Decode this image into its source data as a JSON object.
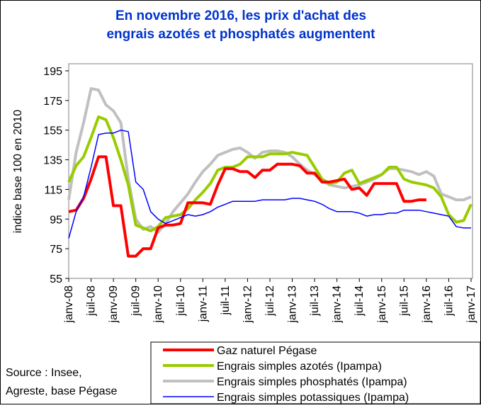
{
  "chart_data": {
    "type": "line",
    "title": "En novembre 2016, les prix d'achat des engrais azotés et phosphatés augmentent",
    "y_label": "indice base 100 en 2010",
    "source": [
      "Source : Insee,",
      "Agreste, base Pégase"
    ],
    "categories": [
      "janv-08",
      null,
      null,
      "juil-08",
      null,
      null,
      "janv-09",
      null,
      null,
      "juil-09",
      null,
      null,
      "janv-10",
      null,
      null,
      "juil-10",
      null,
      null,
      "janv-11",
      null,
      null,
      "juil-11",
      null,
      null,
      "janv-12",
      null,
      null,
      "juil-12",
      null,
      null,
      "janv-13",
      null,
      null,
      "juil-13",
      null,
      null,
      "janv-14",
      null,
      null,
      "juil-14",
      null,
      null,
      "janv-15",
      null,
      null,
      "juil-15",
      null,
      null,
      "janv-16",
      null,
      null,
      "juil-16",
      null,
      null,
      "janv-17"
    ],
    "series": [
      {
        "name": "Gaz naturel Pégase",
        "color": "#ff0000",
        "width": 4,
        "values": [
          100,
          101,
          109,
          122,
          137,
          137,
          104,
          104,
          70,
          70,
          75,
          75,
          89,
          91,
          91,
          92,
          106,
          106,
          106,
          105,
          118,
          129,
          129,
          127,
          127,
          123,
          128,
          128,
          132,
          132,
          132,
          131,
          126,
          126,
          120,
          120,
          121,
          122,
          115,
          116,
          111,
          119,
          119,
          119,
          119,
          107,
          107,
          108,
          108,
          null,
          null,
          null,
          null,
          null,
          null
        ]
      },
      {
        "name": "Engrais simples azotés (Ipampa)",
        "color": "#99cc00",
        "width": 4,
        "values": [
          120,
          131,
          137,
          150,
          164,
          162,
          150,
          135,
          118,
          91,
          89,
          87,
          90,
          96,
          97,
          98,
          102,
          108,
          113,
          119,
          128,
          130,
          130,
          132,
          137,
          137,
          137,
          139,
          139,
          139,
          140,
          139,
          138,
          130,
          122,
          119,
          120,
          126,
          128,
          119,
          121,
          123,
          125,
          130,
          130,
          122,
          120,
          119,
          118,
          116,
          110,
          98,
          93,
          94,
          105
        ]
      },
      {
        "name": "Engrais simples phosphatés (Ipampa)",
        "color": "#c0c0c0",
        "width": 4,
        "values": [
          108,
          140,
          160,
          183,
          182,
          172,
          168,
          160,
          122,
          95,
          88,
          90,
          86,
          92,
          100,
          106,
          112,
          120,
          127,
          132,
          138,
          140,
          142,
          143,
          140,
          136,
          140,
          141,
          141,
          140,
          137,
          132,
          128,
          125,
          121,
          118,
          117,
          116,
          117,
          118,
          120,
          122,
          125,
          129,
          129,
          128,
          127,
          125,
          127,
          124,
          112,
          110,
          108,
          108,
          110
        ]
      },
      {
        "name": "Engrais simples potassiques (Ipampa)",
        "color": "#0000ff",
        "width": 1.5,
        "values": [
          82,
          100,
          110,
          130,
          152,
          153,
          153,
          155,
          154,
          120,
          115,
          100,
          95,
          92,
          94,
          96,
          98,
          97,
          98,
          100,
          103,
          105,
          107,
          107,
          107,
          107,
          108,
          108,
          108,
          108,
          109,
          109,
          108,
          107,
          105,
          102,
          100,
          100,
          100,
          99,
          97,
          98,
          98,
          99,
          99,
          101,
          101,
          101,
          100,
          99,
          98,
          97,
          90,
          89,
          89
        ]
      }
    ],
    "ylim": [
      55,
      195
    ],
    "yticks": [
      55,
      75,
      95,
      115,
      135,
      155,
      175,
      195
    ],
    "grid": false
  }
}
